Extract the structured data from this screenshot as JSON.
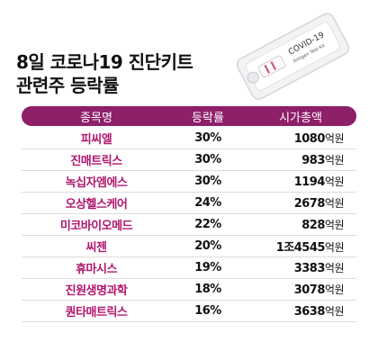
{
  "title": [
    "8일 코로나19 진단키트",
    "관련주 등락률"
  ],
  "kit_label": [
    "COVID-19",
    "Antigen Test Kit"
  ],
  "chart_data": {
    "type": "table",
    "title": "8일 코로나19 진단키트 관련주 등락률",
    "columns": [
      "종목명",
      "등락률",
      "시가총액"
    ],
    "rows": [
      {
        "name": "피씨엘",
        "rate": "30%",
        "cap_num": "1080",
        "cap_unit": "억원"
      },
      {
        "name": "진매트릭스",
        "rate": "30%",
        "cap_num": "983",
        "cap_unit": "억원"
      },
      {
        "name": "녹십자엠에스",
        "rate": "30%",
        "cap_num": "1194",
        "cap_unit": "억원"
      },
      {
        "name": "오상헬스케어",
        "rate": "24%",
        "cap_num": "2678",
        "cap_unit": "억원"
      },
      {
        "name": "미코바이오메드",
        "rate": "22%",
        "cap_num": "828",
        "cap_unit": "억원"
      },
      {
        "name": "씨젠",
        "rate": "20%",
        "cap_num": "1조4545",
        "cap_unit": "억원"
      },
      {
        "name": "휴마시스",
        "rate": "19%",
        "cap_num": "3383",
        "cap_unit": "억원"
      },
      {
        "name": "진원생명과학",
        "rate": "18%",
        "cap_num": "3078",
        "cap_unit": "억원"
      },
      {
        "name": "퀀타매트릭스",
        "rate": "16%",
        "cap_num": "3638",
        "cap_unit": "억원"
      }
    ],
    "colors": {
      "header_bg": "#8e1f69",
      "name_text": "#b0166e"
    }
  }
}
